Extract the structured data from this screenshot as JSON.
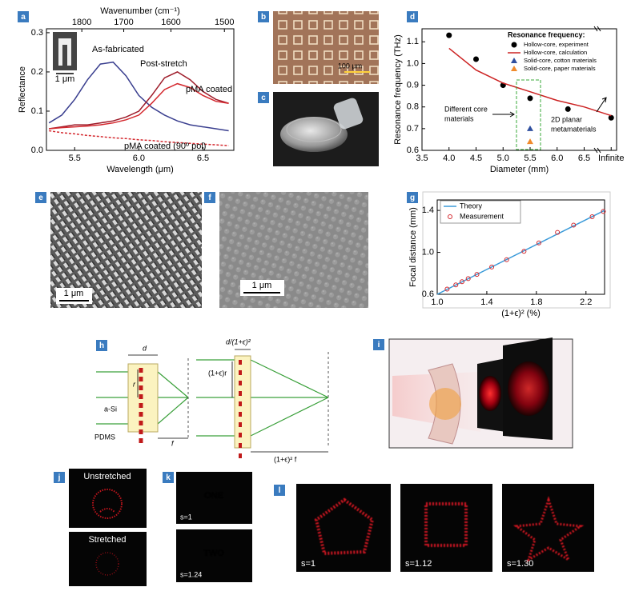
{
  "panel_labels": [
    "a",
    "b",
    "c",
    "d",
    "e",
    "f",
    "g",
    "h",
    "i",
    "j",
    "k",
    "l"
  ],
  "chart_data": [
    {
      "type": "line",
      "xlabel": "Wavelength (μm)",
      "ylabel": "Reflectance",
      "x2label": "Wavenumber (cm⁻¹)",
      "xlim": [
        5.28,
        6.74
      ],
      "ylim": [
        0,
        0.31
      ],
      "xticks": [
        {
          "value": 5.5,
          "label": "5.5"
        },
        {
          "value": 6.0,
          "label": "6.0"
        },
        {
          "value": 6.5,
          "label": "6.5"
        }
      ],
      "yticks": [
        {
          "value": 0,
          "label": "0.0"
        },
        0.1,
        0.2,
        0.3
      ],
      "x2ticks": [
        1800,
        1700,
        1600,
        1500
      ],
      "inset_scale_bar": "1 μm",
      "x": [
        5.3,
        5.4,
        5.5,
        5.6,
        5.7,
        5.8,
        5.9,
        6.0,
        6.1,
        6.2,
        6.3,
        6.4,
        6.5,
        6.6,
        6.7
      ],
      "series": [
        {
          "name": "As-fabricated",
          "color": "#3a3f8f",
          "style": "line",
          "values": [
            0.07,
            0.09,
            0.13,
            0.18,
            0.22,
            0.225,
            0.19,
            0.14,
            0.11,
            0.09,
            0.075,
            0.065,
            0.06,
            0.055,
            0.05
          ]
        },
        {
          "name": "Post-stretch",
          "color": "#9e1c2a",
          "style": "line",
          "values": [
            0.055,
            0.06,
            0.065,
            0.065,
            0.07,
            0.075,
            0.085,
            0.1,
            0.14,
            0.185,
            0.2,
            0.18,
            0.15,
            0.13,
            0.12
          ]
        },
        {
          "name": "pMA coated",
          "color": "#d4282e",
          "style": "line",
          "values": [
            0.055,
            0.058,
            0.06,
            0.062,
            0.065,
            0.07,
            0.078,
            0.09,
            0.12,
            0.155,
            0.17,
            0.16,
            0.14,
            0.125,
            0.12
          ]
        },
        {
          "name": "pMA coated (90º pol)",
          "color": "#d4282e",
          "style": "dashed",
          "values": [
            0.05,
            0.045,
            0.042,
            0.038,
            0.035,
            0.032,
            0.03,
            0.027,
            0.025,
            0.022,
            0.02,
            0.018,
            0.016,
            0.014,
            0.012
          ]
        }
      ]
    },
    {
      "type": "scatter",
      "xlabel": "Diameter (mm)",
      "ylabel": "Resonance frequency (THz)",
      "xlim": [
        3.5,
        7.1
      ],
      "ylim": [
        0.6,
        1.16
      ],
      "xticks": [
        3.5,
        {
          "value": 4.0,
          "label": "4.0"
        },
        4.5,
        {
          "value": 5.0,
          "label": "5.0"
        },
        5.5,
        {
          "value": 6.0,
          "label": "6.0"
        },
        6.5,
        {
          "value": 7.0,
          "label": "Infinite"
        }
      ],
      "yticks": [
        0.6,
        0.7,
        0.8,
        0.9,
        {
          "value": 1.0,
          "label": "1.0"
        },
        1.1
      ],
      "legend_title": "Resonance frequency:",
      "legend": "upper right",
      "annotations": [
        [
          "Different core",
          "materials"
        ],
        [
          "2D planar",
          "metamaterials"
        ]
      ],
      "series": [
        {
          "name": "Hollow-core, experiment",
          "color": "#000000",
          "style": "circle",
          "x": [
            4.0,
            4.5,
            5.0,
            5.5,
            6.2,
            7.0
          ],
          "values": [
            1.13,
            1.02,
            0.9,
            0.84,
            0.79,
            0.75
          ]
        },
        {
          "name": "Hollow-core, calculation",
          "color": "#cc2222",
          "style": "line",
          "x": [
            4.0,
            4.5,
            5.0,
            5.5,
            6.0,
            6.5,
            7.0
          ],
          "values": [
            1.07,
            0.97,
            0.91,
            0.87,
            0.83,
            0.8,
            0.76
          ]
        },
        {
          "name": "Solid-core, cotton materials",
          "color": "#2f4f9f",
          "style": "triangle",
          "x": [
            5.5
          ],
          "values": [
            0.7
          ]
        },
        {
          "name": "Solid-core, paper materials",
          "color": "#f08a2c",
          "style": "triangle",
          "x": [
            5.5
          ],
          "values": [
            0.64
          ]
        }
      ]
    },
    {
      "type": "line",
      "xlabel": "(1+ϵ)² (%)",
      "ylabel": "Focal distance (mm)",
      "xlim": [
        1.0,
        2.35
      ],
      "ylim": [
        0.6,
        1.5
      ],
      "xticks": [
        {
          "value": 1.0,
          "label": "1.0"
        },
        1.4,
        1.8,
        2.2
      ],
      "yticks": [
        0.6,
        {
          "value": 1.0,
          "label": "1.0"
        },
        1.4
      ],
      "legend": "upper left",
      "series": [
        {
          "name": "Theory",
          "color": "#3a9ad9",
          "style": "line",
          "x": [
            1.0,
            2.35
          ],
          "values": [
            0.6,
            1.4
          ]
        },
        {
          "name": "Measurement",
          "color": "#d4282e",
          "style": "open-circle",
          "x": [
            1.08,
            1.15,
            1.2,
            1.25,
            1.32,
            1.44,
            1.56,
            1.7,
            1.82,
            1.97,
            2.1,
            2.25,
            2.34
          ],
          "values": [
            0.65,
            0.69,
            0.72,
            0.75,
            0.79,
            0.86,
            0.93,
            1.01,
            1.09,
            1.19,
            1.26,
            1.34,
            1.39
          ]
        }
      ]
    }
  ],
  "b": {
    "scale_bar": "100 μm"
  },
  "e": {
    "scale_bar": "1 μm"
  },
  "f": {
    "scale_bar": "1 μm"
  },
  "h": {
    "labels": [
      "d",
      "r",
      "a-Si",
      "PDMS",
      "f",
      "d/(1+ϵ)²",
      "(1+ϵ)r",
      "(1+ϵ)² f"
    ]
  },
  "j": {
    "images": [
      "Unstretched",
      "Stretched"
    ]
  },
  "k": {
    "images": [
      {
        "text": "ONE",
        "caption": "s=1"
      },
      {
        "text": "TWO",
        "caption": "s=1.24"
      }
    ]
  },
  "l": {
    "captions": [
      "s=1",
      "s=1.12",
      "s=1.30"
    ]
  }
}
